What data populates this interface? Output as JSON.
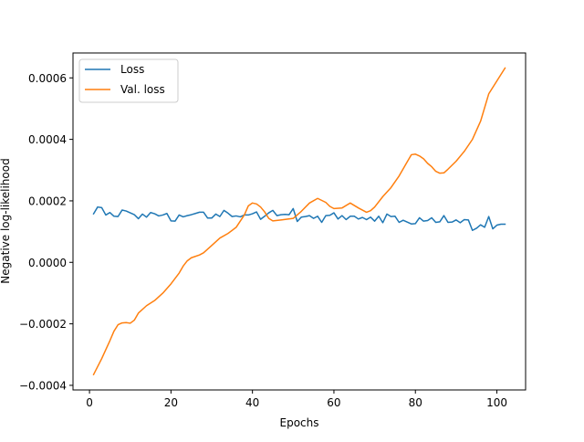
{
  "chart_data": {
    "type": "line",
    "title": "",
    "xlabel": "Epochs",
    "ylabel": "Negative log-likelihood",
    "xlim": [
      -4.05,
      107.05
    ],
    "ylim": [
      -0.000415,
      0.000681
    ],
    "grid": false,
    "legend_position": "top-left",
    "x_ticks": [
      {
        "value": 0,
        "label": "0"
      },
      {
        "value": 20,
        "label": "20"
      },
      {
        "value": 40,
        "label": "40"
      },
      {
        "value": 60,
        "label": "60"
      },
      {
        "value": 80,
        "label": "80"
      },
      {
        "value": 100,
        "label": "100"
      }
    ],
    "y_ticks": [
      {
        "value": -0.0004,
        "label": "−0.0004"
      },
      {
        "value": -0.0002,
        "label": "−0.0002"
      },
      {
        "value": 0.0,
        "label": "0.0000"
      },
      {
        "value": 0.0002,
        "label": "0.0002"
      },
      {
        "value": 0.0004,
        "label": "0.0004"
      },
      {
        "value": 0.0006,
        "label": "0.0006"
      }
    ],
    "series": [
      {
        "name": "Loss",
        "color": "#1f77b4",
        "x": [
          1,
          2,
          3,
          4,
          5,
          6,
          7,
          8,
          9,
          10,
          11,
          12,
          13,
          14,
          15,
          16,
          17,
          18,
          19,
          20,
          21,
          22,
          23,
          24,
          25,
          26,
          27,
          28,
          29,
          30,
          31,
          32,
          33,
          34,
          35,
          36,
          37,
          38,
          39,
          40,
          41,
          42,
          43,
          44,
          45,
          46,
          47,
          48,
          49,
          50,
          51,
          52,
          53,
          54,
          55,
          56,
          57,
          58,
          59,
          60,
          61,
          62,
          63,
          64,
          65,
          66,
          67,
          68,
          69,
          70,
          71,
          72,
          73,
          74,
          75,
          76,
          77,
          78,
          79,
          80,
          81,
          82,
          83,
          84,
          85,
          86,
          87,
          88,
          89,
          90,
          91,
          92,
          93,
          94,
          95,
          96,
          97,
          98,
          99,
          100,
          101,
          102
        ],
        "y": [
          0.000158,
          0.00018,
          0.000178,
          0.000154,
          0.000162,
          0.00015,
          0.000149,
          0.00017,
          0.000167,
          0.000161,
          0.000155,
          0.000142,
          0.000157,
          0.000147,
          0.000162,
          0.000158,
          0.000151,
          0.000154,
          0.000159,
          0.000135,
          0.000134,
          0.000154,
          0.000148,
          0.000152,
          0.000155,
          0.000159,
          0.000163,
          0.000163,
          0.000144,
          0.000144,
          0.000157,
          0.000149,
          0.000169,
          0.00016,
          0.000149,
          0.000151,
          0.000148,
          0.000154,
          0.000154,
          0.000158,
          0.000164,
          0.00014,
          0.00015,
          0.000161,
          0.000169,
          0.000152,
          0.000155,
          0.000156,
          0.000155,
          0.000175,
          0.000133,
          0.000147,
          0.000149,
          0.000152,
          0.000143,
          0.00015,
          0.00013,
          0.000152,
          0.000153,
          0.000161,
          0.000141,
          0.000152,
          0.000139,
          0.00015,
          0.00015,
          0.000141,
          0.000146,
          0.000139,
          0.000147,
          0.000134,
          0.00015,
          0.000129,
          0.000157,
          0.000149,
          0.00015,
          0.00013,
          0.000137,
          0.000131,
          0.000125,
          0.000126,
          0.000145,
          0.000134,
          0.000136,
          0.000145,
          0.00013,
          0.000132,
          0.000152,
          0.00013,
          0.000131,
          0.000138,
          0.000129,
          0.000139,
          0.000138,
          0.000104,
          0.000111,
          0.000122,
          0.000114,
          0.000149,
          0.000109,
          0.000121,
          0.000124,
          0.000124
        ]
      },
      {
        "name": "Val. loss",
        "color": "#ff7f0e",
        "x": [
          1,
          3,
          5,
          6,
          7,
          8,
          9,
          10,
          11,
          12,
          14,
          16,
          18,
          20,
          22,
          23,
          24,
          25,
          27,
          28,
          30,
          32,
          34,
          36,
          38,
          39,
          40,
          41,
          42,
          43,
          44,
          45,
          47,
          50,
          52,
          54,
          56,
          58,
          59,
          60,
          62,
          64,
          66,
          68,
          69,
          70,
          72,
          74,
          76,
          78,
          79,
          80,
          81,
          82,
          83,
          84,
          85,
          86,
          87,
          88,
          90,
          92,
          94,
          96,
          98,
          100,
          102
        ],
        "y": [
          -0.000365,
          -0.000313,
          -0.000255,
          -0.000224,
          -0.000203,
          -0.000197,
          -0.000196,
          -0.000198,
          -0.000188,
          -0.000165,
          -0.000141,
          -0.000124,
          -0.0001,
          -7e-05,
          -3.5e-05,
          -1.2e-05,
          5e-06,
          1.5e-05,
          2.4e-05,
          3.1e-05,
          5.5e-05,
          7.9e-05,
          9.4e-05,
          0.000114,
          0.000154,
          0.000184,
          0.000193,
          0.00019,
          0.00018,
          0.000164,
          0.000143,
          0.000135,
          0.000138,
          0.000143,
          0.000166,
          0.000193,
          0.000208,
          0.000195,
          0.000182,
          0.000175,
          0.000177,
          0.000193,
          0.000177,
          0.000163,
          0.000168,
          0.00018,
          0.000214,
          0.000243,
          0.000281,
          0.000327,
          0.00035,
          0.000352,
          0.000346,
          0.000337,
          0.000322,
          0.000311,
          0.000296,
          0.00029,
          0.000291,
          0.000303,
          0.000329,
          0.000361,
          0.0004,
          0.000459,
          0.000548,
          0.00059,
          0.000632
        ]
      }
    ]
  }
}
